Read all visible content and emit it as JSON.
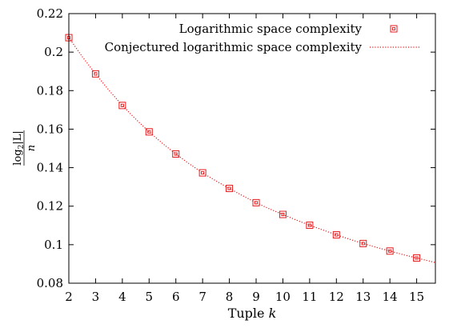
{
  "chart_data": {
    "type": "scatter",
    "xlabel_prefix": "Tuple ",
    "xlabel_var": "k",
    "ylabel": {
      "log": "log",
      "base": "2",
      "arg": "|L|",
      "denominator": "n"
    },
    "xlim": [
      2,
      15.7
    ],
    "ylim": [
      0.08,
      0.22
    ],
    "x_ticks": [
      2,
      3,
      4,
      5,
      6,
      7,
      8,
      9,
      10,
      11,
      12,
      13,
      14,
      15
    ],
    "y_ticks": [
      0.08,
      0.1,
      0.12,
      0.14,
      0.16,
      0.18,
      0.2,
      0.22
    ],
    "y_tick_labels": [
      "0.08",
      "0.1",
      "0.12",
      "0.14",
      "0.16",
      "0.18",
      "0.2",
      "0.22"
    ],
    "grid": false,
    "legend_position": "top-right",
    "series": [
      {
        "name": "Logarithmic space complexity",
        "style": "points",
        "marker": "boxed-square",
        "color": "#e41a1c",
        "x": [
          2,
          3,
          4,
          5,
          6,
          7,
          8,
          9,
          10,
          11,
          12,
          13,
          14,
          15
        ],
        "y": [
          0.2075,
          0.1887,
          0.1723,
          0.1586,
          0.1471,
          0.1373,
          0.1292,
          0.1218,
          0.1157,
          0.1101,
          0.1051,
          0.1006,
          0.0967,
          0.0931
        ]
      },
      {
        "name": "Conjectured logarithmic space complexity",
        "style": "dotted-line",
        "color": "#e41a1c",
        "x": [
          2,
          2.5,
          3,
          3.5,
          4,
          4.5,
          5,
          5.5,
          6,
          6.5,
          7,
          7.5,
          8,
          8.5,
          9,
          9.5,
          10,
          10.5,
          11,
          11.5,
          12,
          12.5,
          13,
          13.5,
          14,
          14.5,
          15,
          15.5,
          15.7
        ],
        "y": [
          0.2075,
          0.1977,
          0.1887,
          0.1802,
          0.1723,
          0.1652,
          0.1586,
          0.1526,
          0.1471,
          0.142,
          0.1373,
          0.1331,
          0.1292,
          0.1254,
          0.1218,
          0.1186,
          0.1157,
          0.1128,
          0.1101,
          0.1076,
          0.1051,
          0.1028,
          0.1006,
          0.0986,
          0.0967,
          0.0948,
          0.0931,
          0.0914,
          0.0907
        ]
      }
    ]
  }
}
